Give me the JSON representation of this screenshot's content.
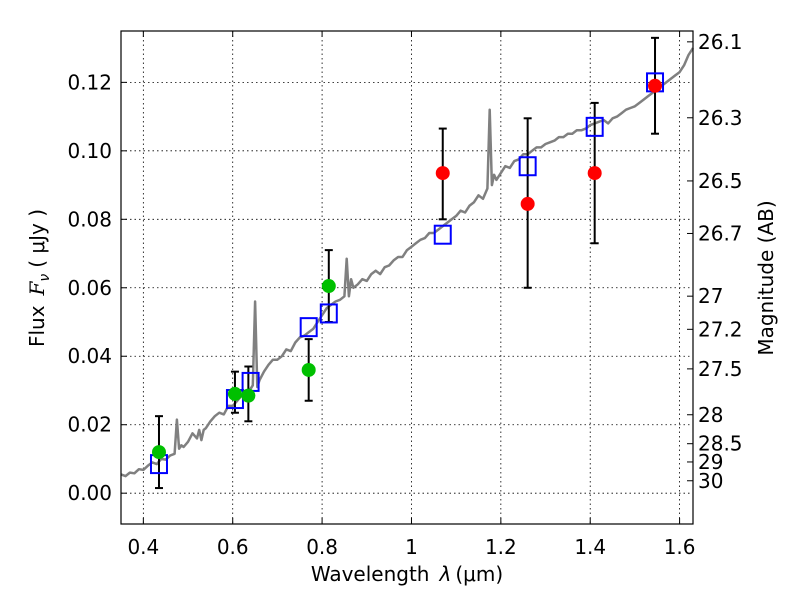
{
  "chart_data": {
    "type": "scatter",
    "xlabel_prefix": "Wavelength",
    "xlabel_symbol": "λ",
    "xlabel_unit": "(μm)",
    "ylabel_prefix": "Flux",
    "ylabel_symbol": "F",
    "ylabel_subscript": "ν",
    "ylabel_unit": "( μJy )",
    "y2label": "Magnitude (AB)",
    "xlim": [
      0.35,
      1.63
    ],
    "ylim": [
      -0.009,
      0.135
    ],
    "x_ticks": [
      0.4,
      0.6,
      0.8,
      1.0,
      1.2,
      1.4,
      1.6
    ],
    "x_tick_labels": [
      "0.4",
      "0.6",
      "0.8",
      "1",
      "1.2",
      "1.4",
      "1.6"
    ],
    "y_ticks": [
      0.0,
      0.02,
      0.04,
      0.06,
      0.08,
      0.1,
      0.12
    ],
    "y_tick_labels": [
      "0.00",
      "0.02",
      "0.04",
      "0.06",
      "0.08",
      "0.10",
      "0.12"
    ],
    "mag_ticks": [
      "26.1",
      "26.3",
      "26.5",
      "26.7",
      "27",
      "27.2",
      "27.5",
      "28",
      "28.5",
      "29",
      "30"
    ],
    "grid": true,
    "colors": {
      "model": "#808080",
      "model_points": "#0000ff",
      "ground_points": "#00c000",
      "space_points": "#ff0000",
      "errorbar": "#000000"
    },
    "model_spectrum": {
      "x": [
        0.35,
        0.36,
        0.37,
        0.38,
        0.39,
        0.4,
        0.41,
        0.42,
        0.43,
        0.44,
        0.45,
        0.46,
        0.47,
        0.475,
        0.48,
        0.485,
        0.49,
        0.5,
        0.51,
        0.52,
        0.525,
        0.53,
        0.535,
        0.54,
        0.55,
        0.56,
        0.57,
        0.58,
        0.59,
        0.6,
        0.61,
        0.62,
        0.63,
        0.64,
        0.645,
        0.65,
        0.655,
        0.66,
        0.67,
        0.68,
        0.69,
        0.7,
        0.71,
        0.72,
        0.73,
        0.74,
        0.75,
        0.76,
        0.77,
        0.78,
        0.79,
        0.8,
        0.81,
        0.82,
        0.83,
        0.84,
        0.85,
        0.855,
        0.86,
        0.865,
        0.87,
        0.88,
        0.89,
        0.9,
        0.91,
        0.92,
        0.93,
        0.94,
        0.95,
        0.96,
        0.97,
        0.98,
        0.99,
        1.0,
        1.01,
        1.02,
        1.03,
        1.04,
        1.05,
        1.06,
        1.07,
        1.08,
        1.09,
        1.1,
        1.11,
        1.12,
        1.13,
        1.14,
        1.15,
        1.16,
        1.17,
        1.175,
        1.18,
        1.185,
        1.19,
        1.2,
        1.21,
        1.22,
        1.23,
        1.24,
        1.25,
        1.26,
        1.27,
        1.28,
        1.29,
        1.3,
        1.31,
        1.32,
        1.33,
        1.34,
        1.35,
        1.36,
        1.37,
        1.38,
        1.39,
        1.4,
        1.41,
        1.42,
        1.43,
        1.44,
        1.45,
        1.46,
        1.47,
        1.48,
        1.49,
        1.5,
        1.51,
        1.52,
        1.53,
        1.54,
        1.55,
        1.56,
        1.57,
        1.58,
        1.59,
        1.6,
        1.61,
        1.62,
        1.63
      ],
      "y": [
        0.0055,
        0.005,
        0.006,
        0.0058,
        0.007,
        0.0068,
        0.008,
        0.009,
        0.0085,
        0.01,
        0.0098,
        0.011,
        0.0115,
        0.0215,
        0.013,
        0.014,
        0.0135,
        0.015,
        0.0175,
        0.016,
        0.0185,
        0.0155,
        0.0185,
        0.019,
        0.021,
        0.0225,
        0.0235,
        0.023,
        0.0255,
        0.0255,
        0.027,
        0.0285,
        0.0295,
        0.0305,
        0.0315,
        0.056,
        0.031,
        0.033,
        0.0355,
        0.0375,
        0.039,
        0.039,
        0.04,
        0.042,
        0.0415,
        0.044,
        0.0455,
        0.046,
        0.047,
        0.048,
        0.05,
        0.052,
        0.054,
        0.055,
        0.056,
        0.0565,
        0.0575,
        0.0685,
        0.0575,
        0.0625,
        0.06,
        0.061,
        0.0625,
        0.062,
        0.064,
        0.065,
        0.064,
        0.066,
        0.0665,
        0.068,
        0.069,
        0.069,
        0.071,
        0.072,
        0.073,
        0.074,
        0.0745,
        0.076,
        0.076,
        0.077,
        0.078,
        0.079,
        0.08,
        0.081,
        0.0825,
        0.082,
        0.084,
        0.085,
        0.087,
        0.086,
        0.089,
        0.112,
        0.09,
        0.093,
        0.0915,
        0.0935,
        0.0955,
        0.095,
        0.097,
        0.0975,
        0.099,
        0.099,
        0.1,
        0.101,
        0.101,
        0.102,
        0.1025,
        0.103,
        0.104,
        0.104,
        0.105,
        0.105,
        0.106,
        0.106,
        0.1065,
        0.1075,
        0.108,
        0.1085,
        0.109,
        0.108,
        0.1095,
        0.11,
        0.111,
        0.112,
        0.1125,
        0.113,
        0.114,
        0.115,
        0.116,
        0.117,
        0.118,
        0.119,
        0.12,
        0.121,
        0.122,
        0.123,
        0.125,
        0.128,
        0.13
      ]
    },
    "model_points": [
      {
        "x": 0.435,
        "y": 0.0085
      },
      {
        "x": 0.605,
        "y": 0.0275
      },
      {
        "x": 0.64,
        "y": 0.0325
      },
      {
        "x": 0.77,
        "y": 0.0485
      },
      {
        "x": 0.815,
        "y": 0.0525
      },
      {
        "x": 1.07,
        "y": 0.0755
      },
      {
        "x": 1.26,
        "y": 0.0955
      },
      {
        "x": 1.41,
        "y": 0.107
      },
      {
        "x": 1.545,
        "y": 0.12
      }
    ],
    "ground_points": [
      {
        "x": 0.435,
        "y": 0.012,
        "err_lo": 0.0105,
        "err_hi": 0.0105
      },
      {
        "x": 0.605,
        "y": 0.029,
        "err_lo": 0.0055,
        "err_hi": 0.0065
      },
      {
        "x": 0.635,
        "y": 0.0285,
        "err_lo": 0.0075,
        "err_hi": 0.0085
      },
      {
        "x": 0.77,
        "y": 0.036,
        "err_lo": 0.009,
        "err_hi": 0.009
      },
      {
        "x": 0.815,
        "y": 0.0605,
        "err_lo": 0.0105,
        "err_hi": 0.0105
      }
    ],
    "space_points": [
      {
        "x": 1.07,
        "y": 0.0935,
        "err_lo": 0.0135,
        "err_hi": 0.013
      },
      {
        "x": 1.26,
        "y": 0.0845,
        "err_lo": 0.0245,
        "err_hi": 0.025
      },
      {
        "x": 1.41,
        "y": 0.0935,
        "err_lo": 0.0205,
        "err_hi": 0.0205
      },
      {
        "x": 1.545,
        "y": 0.119,
        "err_lo": 0.014,
        "err_hi": 0.014
      }
    ]
  }
}
